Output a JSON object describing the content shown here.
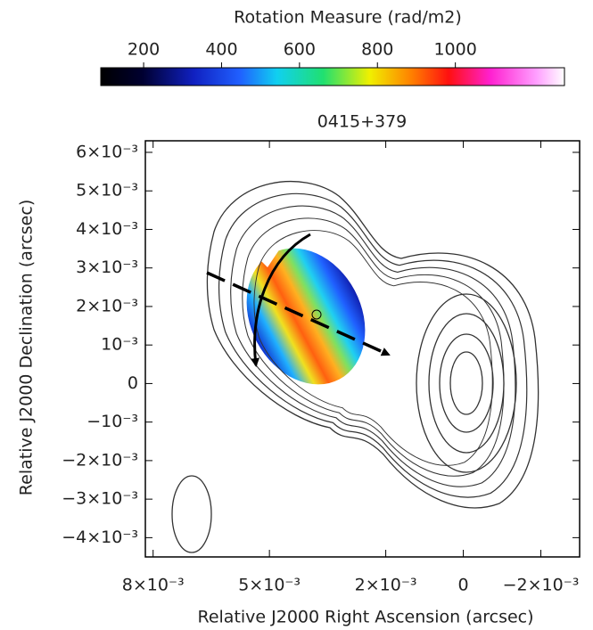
{
  "chart_data": {
    "type": "image",
    "title": "0415+379",
    "x_label": "Relative J2000 Right Ascension (arcsec)",
    "y_label": "Relative J2000 Declination (arcsec)",
    "xlim": [
      0.0082,
      -0.003
    ],
    "ylim": [
      -0.0045,
      0.0063
    ],
    "xticks": [
      {
        "value": 0.008,
        "label": "8×10⁻³"
      },
      {
        "value": 0.005,
        "label": "5×10⁻³"
      },
      {
        "value": 0.002,
        "label": "2×10⁻³"
      },
      0,
      {
        "value": -0.002,
        "label": "−2×10⁻³"
      }
    ],
    "yticks": [
      {
        "value": 0.006,
        "label": "6×10⁻³"
      },
      {
        "value": 0.005,
        "label": "5×10⁻³"
      },
      {
        "value": 0.004,
        "label": "4×10⁻³"
      },
      {
        "value": 0.003,
        "label": "3×10⁻³"
      },
      {
        "value": 0.002,
        "label": "2×10⁻³"
      },
      {
        "value": 0.001,
        "label": "10⁻³"
      },
      0,
      {
        "value": -0.001,
        "label": "−10⁻³"
      },
      {
        "value": -0.002,
        "label": "−2×10⁻³"
      },
      {
        "value": -0.003,
        "label": "−3×10⁻³"
      },
      {
        "value": -0.004,
        "label": "−4×10⁻³"
      }
    ],
    "colorbar": {
      "label": "Rotation Measure (rad/m2)",
      "clim": [
        90,
        1280
      ],
      "ticks": [
        200,
        400,
        600,
        800,
        1000
      ]
    }
  }
}
